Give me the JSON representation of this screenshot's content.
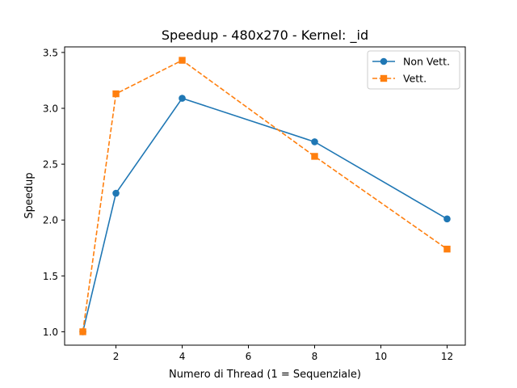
{
  "chart_data": {
    "type": "line",
    "title": "Speedup - 480x270 - Kernel: _id",
    "xlabel": "Numero di Thread (1 = Sequenziale)",
    "ylabel": "Speedup",
    "xlim": [
      0.45,
      12.55
    ],
    "ylim": [
      0.88,
      3.55
    ],
    "xticks": [
      2,
      4,
      6,
      8,
      10,
      12
    ],
    "yticks": [
      1.0,
      1.5,
      2.0,
      2.5,
      3.0,
      3.5
    ],
    "xtick_labels": [
      "2",
      "4",
      "6",
      "8",
      "10",
      "12"
    ],
    "ytick_labels": [
      "1.0",
      "1.5",
      "2.0",
      "2.5",
      "3.0",
      "3.5"
    ],
    "x": [
      1,
      2,
      4,
      8,
      12
    ],
    "grid": false,
    "legend_position": "top-right",
    "series": [
      {
        "name": "Non Vett.",
        "values": [
          1.0,
          2.24,
          3.09,
          2.7,
          2.01
        ],
        "color": "#1f77b4",
        "marker": "circle",
        "linestyle": "solid"
      },
      {
        "name": "Vett.",
        "values": [
          1.0,
          3.13,
          3.43,
          2.57,
          1.74
        ],
        "color": "#ff7f0e",
        "marker": "square",
        "linestyle": "dashed"
      }
    ]
  }
}
